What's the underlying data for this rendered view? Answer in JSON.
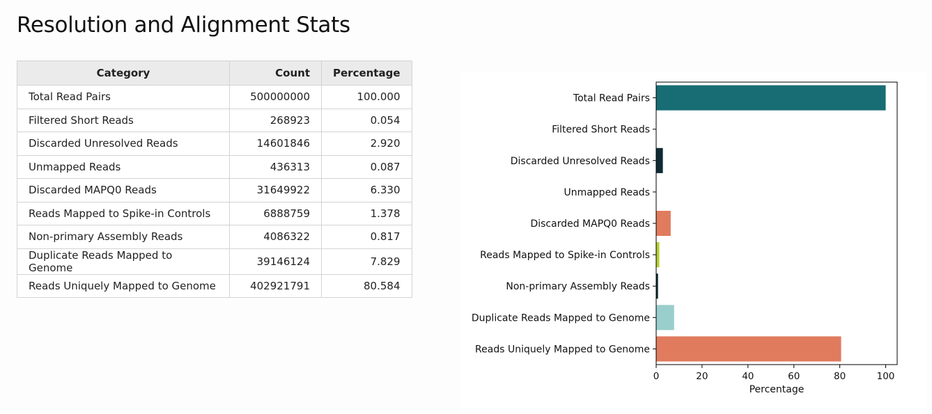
{
  "page": {
    "title": "Resolution and Alignment Stats"
  },
  "table": {
    "headers": {
      "category": "Category",
      "count": "Count",
      "percentage": "Percentage"
    },
    "rows": [
      {
        "category": "Total Read Pairs",
        "count": "500000000",
        "percentage": "100.000"
      },
      {
        "category": "Filtered Short Reads",
        "count": "268923",
        "percentage": "0.054"
      },
      {
        "category": "Discarded Unresolved Reads",
        "count": "14601846",
        "percentage": "2.920"
      },
      {
        "category": "Unmapped Reads",
        "count": "436313",
        "percentage": "0.087"
      },
      {
        "category": "Discarded MAPQ0 Reads",
        "count": "31649922",
        "percentage": "6.330"
      },
      {
        "category": "Reads Mapped to Spike-in Controls",
        "count": "6888759",
        "percentage": "1.378"
      },
      {
        "category": "Non-primary Assembly Reads",
        "count": "4086322",
        "percentage": "0.817"
      },
      {
        "category": "Duplicate Reads Mapped to Genome",
        "count": "39146124",
        "percentage": "7.829"
      },
      {
        "category": "Reads Uniquely Mapped to Genome",
        "count": "402921791",
        "percentage": "80.584"
      }
    ]
  },
  "chart_data": {
    "type": "bar",
    "orientation": "horizontal",
    "categories": [
      "Total Read Pairs",
      "Filtered Short Reads",
      "Discarded Unresolved Reads",
      "Unmapped Reads",
      "Discarded MAPQ0 Reads",
      "Reads Mapped to Spike-in Controls",
      "Non-primary Assembly Reads",
      "Duplicate Reads Mapped to Genome",
      "Reads Uniquely Mapped to Genome"
    ],
    "values": [
      100.0,
      0.054,
      2.92,
      0.087,
      6.33,
      1.378,
      0.817,
      7.829,
      80.584
    ],
    "colors": [
      "#176d73",
      "#1f2b2f",
      "#0f2a33",
      "#1f2b2f",
      "#e07b5e",
      "#b5cf2f",
      "#0f2a33",
      "#99cecc",
      "#e07b5e"
    ],
    "xlabel": "Percentage",
    "ylabel": "",
    "title": "",
    "xlim": [
      0,
      105
    ],
    "xticks": [
      0,
      20,
      40,
      60,
      80,
      100
    ],
    "grid": false
  }
}
